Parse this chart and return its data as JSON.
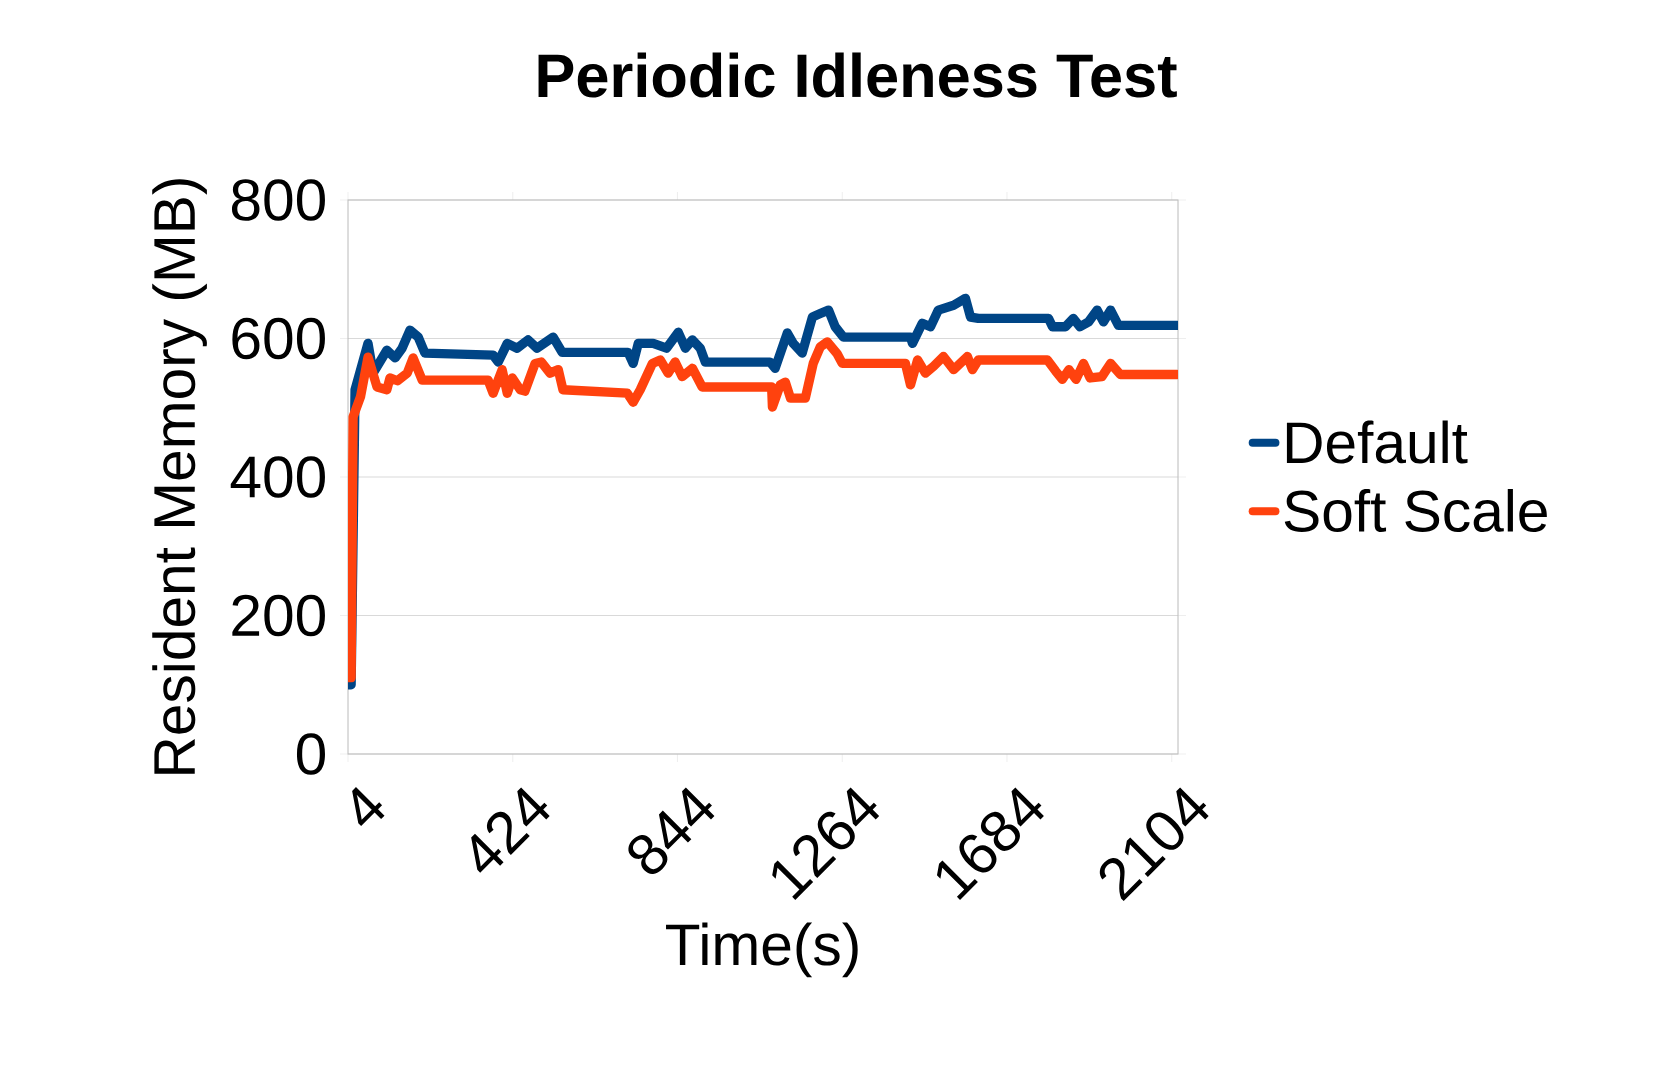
{
  "chart_data": {
    "type": "line",
    "title": "Periodic Idleness Test",
    "xlabel": "Time(s)",
    "ylabel": "Resident Memory (MB)",
    "xlim": [
      4,
      2120
    ],
    "xticks": [
      4,
      424,
      844,
      1264,
      1684,
      2104
    ],
    "ylim": [
      0,
      800
    ],
    "yticks": [
      0,
      200,
      400,
      600,
      800
    ],
    "grid": "y",
    "legend": "right",
    "series": [
      {
        "name": "Default",
        "color": "#004586",
        "x": [
          4,
          12,
          22,
          55,
          68,
          103,
          124,
          142,
          162,
          183,
          200,
          374,
          387,
          410,
          435,
          463,
          486,
          527,
          550,
          718,
          731,
          744,
          782,
          816,
          846,
          864,
          882,
          902,
          915,
          1080,
          1093,
          1124,
          1139,
          1162,
          1188,
          1208,
          1229,
          1246,
          1267,
          1438,
          1443,
          1468,
          1489,
          1509,
          1548,
          1578,
          1591,
          1611,
          1790,
          1800,
          1833,
          1853,
          1870,
          1892,
          1914,
          1930,
          1948,
          1968,
          2118
        ],
        "values": [
          100,
          100,
          526,
          593,
          550,
          583,
          572,
          586,
          612,
          602,
          579,
          576,
          566,
          593,
          586,
          598,
          586,
          602,
          580,
          580,
          564,
          593,
          593,
          586,
          609,
          586,
          598,
          586,
          566,
          566,
          557,
          608,
          593,
          579,
          631,
          636,
          641,
          617,
          602,
          602,
          593,
          622,
          617,
          641,
          648,
          658,
          631,
          629,
          629,
          617,
          617,
          629,
          617,
          624,
          641,
          624,
          641,
          619,
          619
        ]
      },
      {
        "name": "Soft Scale",
        "color": "#ff420e",
        "x": [
          4,
          12,
          17,
          36,
          55,
          78,
          103,
          111,
          130,
          155,
          170,
          193,
          361,
          374,
          397,
          410,
          423,
          443,
          455,
          481,
          497,
          519,
          540,
          552,
          716,
          731,
          749,
          780,
          800,
          820,
          838,
          856,
          882,
          907,
          1084,
          1086,
          1106,
          1119,
          1132,
          1170,
          1190,
          1208,
          1226,
          1251,
          1264,
          1425,
          1438,
          1456,
          1476,
          1497,
          1522,
          1548,
          1583,
          1596,
          1611,
          1787,
          1808,
          1825,
          1842,
          1860,
          1879,
          1896,
          1926,
          1948,
          1973,
          2118
        ],
        "values": [
          110,
          110,
          487,
          516,
          573,
          530,
          526,
          543,
          539,
          550,
          572,
          540,
          540,
          521,
          555,
          521,
          543,
          526,
          524,
          564,
          566,
          550,
          555,
          526,
          521,
          508,
          526,
          564,
          569,
          550,
          566,
          545,
          557,
          530,
          530,
          501,
          533,
          537,
          514,
          514,
          564,
          588,
          595,
          578,
          564,
          564,
          533,
          569,
          550,
          560,
          574,
          555,
          574,
          555,
          569,
          569,
          553,
          541,
          555,
          541,
          564,
          543,
          545,
          564,
          548,
          548
        ]
      }
    ]
  }
}
